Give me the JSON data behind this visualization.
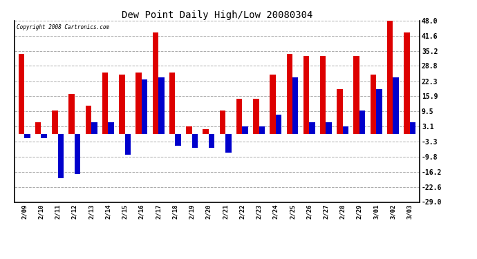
{
  "title": "Dew Point Daily High/Low 20080304",
  "copyright": "Copyright 2008 Cartronics.com",
  "dates": [
    "2/09",
    "2/10",
    "2/11",
    "2/12",
    "2/13",
    "2/14",
    "2/15",
    "2/16",
    "2/17",
    "2/18",
    "2/19",
    "2/20",
    "2/21",
    "2/22",
    "2/23",
    "2/24",
    "2/25",
    "2/26",
    "2/27",
    "2/28",
    "2/29",
    "3/01",
    "3/02",
    "3/03"
  ],
  "highs": [
    34.0,
    5.0,
    10.0,
    17.0,
    12.0,
    26.0,
    25.0,
    26.0,
    43.0,
    26.0,
    3.0,
    2.0,
    10.0,
    15.0,
    15.0,
    25.0,
    34.0,
    33.0,
    33.0,
    19.0,
    33.0,
    25.0,
    48.0,
    43.0
  ],
  "lows": [
    -2.0,
    -2.0,
    -19.0,
    -17.0,
    5.0,
    5.0,
    -9.0,
    23.0,
    24.0,
    -5.0,
    -6.0,
    -6.0,
    -8.0,
    3.0,
    3.0,
    8.0,
    24.0,
    5.0,
    5.0,
    3.0,
    10.0,
    19.0,
    24.0,
    5.0
  ],
  "high_color": "#dd0000",
  "low_color": "#0000cc",
  "background_color": "#ffffff",
  "plot_bg_color": "#ffffff",
  "grid_color": "#aaaaaa",
  "yticks": [
    48.0,
    41.6,
    35.2,
    28.8,
    22.3,
    15.9,
    9.5,
    3.1,
    -3.3,
    -9.8,
    -16.2,
    -22.6,
    -29.0
  ],
  "ymin": -29.0,
  "ymax": 48.0,
  "bar_width": 0.35,
  "figwidth": 6.9,
  "figheight": 3.75,
  "dpi": 100
}
